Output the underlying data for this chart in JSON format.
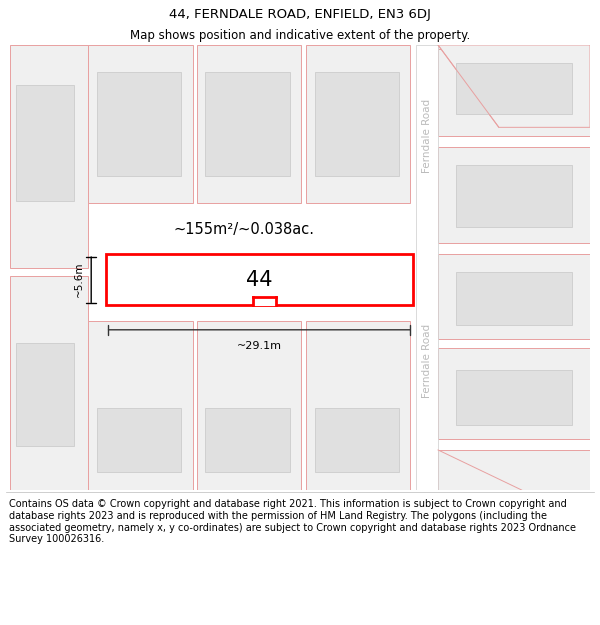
{
  "title": "44, FERNDALE ROAD, ENFIELD, EN3 6DJ",
  "subtitle": "Map shows position and indicative extent of the property.",
  "footer": "Contains OS data © Crown copyright and database right 2021. This information is subject to Crown copyright and database rights 2023 and is reproduced with the permission of HM Land Registry. The polygons (including the associated geometry, namely x, y co-ordinates) are subject to Crown copyright and database rights 2023 Ordnance Survey 100026316.",
  "bg_color": "#ffffff",
  "map_bg": "#f5f5f5",
  "road_color": "#ffffff",
  "plot_outline_color": "#e8a0a0",
  "building_fill": "#e0e0e0",
  "building_outline": "#d0d0d0",
  "highlight_color": "#ff0000",
  "highlight_fill": "#ffffff",
  "text_color": "#000000",
  "area_text": "~155m²/~0.038ac.",
  "number_text": "44",
  "width_label": "~29.1m",
  "height_label": "~5.6m",
  "ferndale_road_label": "Ferndale Road",
  "title_fontsize": 9.5,
  "subtitle_fontsize": 8.5,
  "footer_fontsize": 7.0
}
